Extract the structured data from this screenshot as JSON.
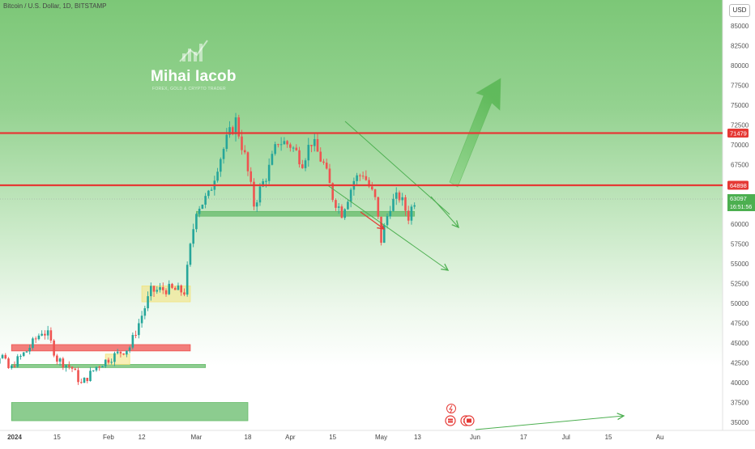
{
  "header": {
    "title": "Bitcoin / U.S. Dollar, 1D, BITSTAMP",
    "currency": "USD"
  },
  "watermark": {
    "brand": "Mihai Iacob",
    "tagline": "FOREX, GOLD & CRYPTO TRADER"
  },
  "badges": {
    "resistance": "71479",
    "support": "64898",
    "last_price": "63097",
    "countdown": "16:51:56"
  },
  "colors": {
    "background_gradient": [
      "#7fc77a",
      "#ffffff"
    ],
    "level_line": "#e53935",
    "zone_green": "#66bb6a",
    "zone_red": "#ef5350",
    "candle_up": "#26a69a",
    "candle_down": "#ef5350",
    "arrow_green": "#4caf50"
  },
  "chart_data": {
    "type": "candlestick",
    "ylim": [
      34500,
      87500
    ],
    "yticks": [
      "85000",
      "82500",
      "80000",
      "77500",
      "75000",
      "72500",
      "70000",
      "67500",
      "65000",
      "62500",
      "60000",
      "57500",
      "55000",
      "52500",
      "50000",
      "47500",
      "45000",
      "42500",
      "40000",
      "37500",
      "35000"
    ],
    "xticks": [
      "2024",
      "15",
      "Feb",
      "12",
      "Mar",
      "18",
      "Apr",
      "15",
      "May",
      "13",
      "Jun",
      "17",
      "Jul",
      "15",
      "Au"
    ],
    "horizontal_levels": [
      71479,
      64898
    ],
    "last_price": 63097,
    "close_path": [
      [
        "2024-01-01",
        42500
      ],
      [
        "2024-01-05",
        44000
      ],
      [
        "2024-01-10",
        46500
      ],
      [
        "2024-01-12",
        46000
      ],
      [
        "2024-01-15",
        43000
      ],
      [
        "2024-01-20",
        41800
      ],
      [
        "2024-01-23",
        39800
      ],
      [
        "2024-01-28",
        42000
      ],
      [
        "2024-02-01",
        43000
      ],
      [
        "2024-02-08",
        44500
      ],
      [
        "2024-02-12",
        48500
      ],
      [
        "2024-02-15",
        51500
      ],
      [
        "2024-02-20",
        51800
      ],
      [
        "2024-02-26",
        51500
      ],
      [
        "2024-02-28",
        57000
      ],
      [
        "2024-03-01",
        62000
      ],
      [
        "2024-03-05",
        63500
      ],
      [
        "2024-03-08",
        67500
      ],
      [
        "2024-03-11",
        70500
      ],
      [
        "2024-03-14",
        73000
      ],
      [
        "2024-03-17",
        68500
      ],
      [
        "2024-03-20",
        62500
      ],
      [
        "2024-03-25",
        67000
      ],
      [
        "2024-03-28",
        70500
      ],
      [
        "2024-04-01",
        70000
      ],
      [
        "2024-04-05",
        68000
      ],
      [
        "2024-04-08",
        70500
      ],
      [
        "2024-04-12",
        67500
      ],
      [
        "2024-04-15",
        63500
      ],
      [
        "2024-04-18",
        61500
      ],
      [
        "2024-04-22",
        65500
      ],
      [
        "2024-04-25",
        66500
      ],
      [
        "2024-04-29",
        63000
      ],
      [
        "2024-05-01",
        58000
      ],
      [
        "2024-05-04",
        62500
      ],
      [
        "2024-05-07",
        63500
      ],
      [
        "2024-05-10",
        61000
      ],
      [
        "2024-05-12",
        63097
      ]
    ],
    "zones": [
      {
        "color": "green",
        "from": "2024-03-01",
        "to": "2024-05-12",
        "low": 61000,
        "high": 61600
      },
      {
        "color": "red",
        "from": "2023-12-31",
        "to": "2024-02-28",
        "low": 44000,
        "high": 44800
      },
      {
        "color": "green",
        "from": "2023-12-31",
        "to": "2024-03-04",
        "low": 41900,
        "high": 42300
      },
      {
        "color": "green",
        "from": "2023-12-31",
        "to": "2024-03-18",
        "low": 35200,
        "high": 37500
      },
      {
        "color": "yellow",
        "from": "2024-02-12",
        "to": "2024-02-28",
        "low": 50200,
        "high": 52200
      },
      {
        "color": "yellow",
        "from": "2024-01-31",
        "to": "2024-02-08",
        "low": 42300,
        "high": 43600
      }
    ],
    "grid": false,
    "legend": "none"
  }
}
